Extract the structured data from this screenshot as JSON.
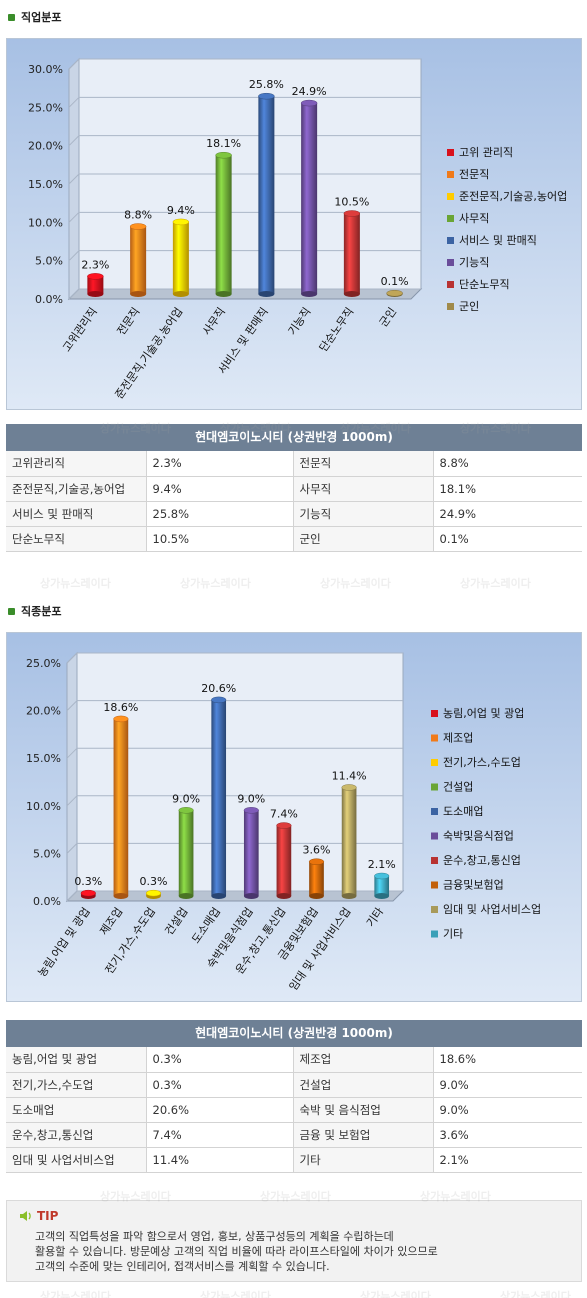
{
  "occupation_section": {
    "title": "직업분포",
    "table_title": "현대엠코이노시티 (상권반경 1000m)",
    "rows": [
      [
        "고위관리직",
        "2.3%",
        "전문직",
        "8.8%"
      ],
      [
        "준전문직,기술공,농어업",
        "9.4%",
        "사무직",
        "18.1%"
      ],
      [
        "서비스 및 판매직",
        "25.8%",
        "기능직",
        "24.9%"
      ],
      [
        "단순노무직",
        "10.5%",
        "군인",
        "0.1%"
      ]
    ]
  },
  "industry_section": {
    "title": "직종분포",
    "table_title": "현대엠코이노시티 (상권반경 1000m)",
    "rows": [
      [
        "농림,어업 및 광업",
        "0.3%",
        "제조업",
        "18.6%"
      ],
      [
        "전기,가스,수도업",
        "0.3%",
        "건설업",
        "9.0%"
      ],
      [
        "도소매업",
        "20.6%",
        "숙박 및 음식점업",
        "9.0%"
      ],
      [
        "운수,창고,통신업",
        "7.4%",
        "금융 및 보험업",
        "3.6%"
      ],
      [
        "임대 및 사업서비스업",
        "11.4%",
        "기타",
        "2.1%"
      ]
    ]
  },
  "tip": {
    "title": "TIP",
    "lines": [
      "고객의 직업특성을 파악 함으로서 영업, 홍보, 상품구성등의 계획을 수립하는데",
      "활용할 수 있습니다. 방문예상 고객의 직업 비율에 따라 라이프스타일에 차이가 있으므로",
      "고객의 수준에 맞는 인테리어, 접객서비스를 계획할 수 있습니다."
    ]
  },
  "watermark_text": "상가뉴스레이다",
  "chart_data": [
    {
      "type": "bar",
      "categories": [
        "고위관리직",
        "전문직",
        "준전문직,기술공,농어업",
        "사무직",
        "서비스 및 판매직",
        "기능직",
        "단순노무직",
        "군인"
      ],
      "values": [
        2.3,
        8.8,
        9.4,
        18.1,
        25.8,
        24.9,
        10.5,
        0.1
      ],
      "value_labels": [
        "2.3%",
        "8.8%",
        "9.4%",
        "18.1%",
        "25.8%",
        "24.9%",
        "10.5%",
        "0.1%"
      ],
      "legend": [
        "고위 관리직",
        "전문직",
        "준전문직,기술공,농어업",
        "사무직",
        "서비스 및 판매직",
        "기능직",
        "단순노무직",
        "군인"
      ],
      "colors": [
        "#d8101c",
        "#f07a1a",
        "#ffcc00",
        "#6aa535",
        "#3b63a3",
        "#6a4d9a",
        "#b83232",
        "#a08a4a"
      ],
      "yticks": [
        "0.0%",
        "5.0%",
        "10.0%",
        "15.0%",
        "20.0%",
        "25.0%",
        "30.0%"
      ],
      "ylim": [
        0,
        30
      ],
      "grid": true,
      "legend_position": "right"
    },
    {
      "type": "bar",
      "categories": [
        "농림,어업 및 광업",
        "제조업",
        "전기,가스,수도업",
        "건설업",
        "도소매업",
        "숙박및음식점업",
        "운수,창고,통신업",
        "금융및보험업",
        "임대 및 사업서비스업",
        "기타"
      ],
      "values": [
        0.3,
        18.6,
        0.3,
        9.0,
        20.6,
        9.0,
        7.4,
        3.6,
        11.4,
        2.1
      ],
      "value_labels": [
        "0.3%",
        "18.6%",
        "0.3%",
        "9.0%",
        "20.6%",
        "9.0%",
        "7.4%",
        "3.6%",
        "11.4%",
        "2.1%"
      ],
      "legend": [
        "농림,어업 및 광업",
        "제조업",
        "전기,가스,수도업",
        "건설업",
        "도소매업",
        "숙박및음식점업",
        "운수,창고,통신업",
        "금융및보험업",
        "임대 및 사업서비스업",
        "기타"
      ],
      "colors": [
        "#d8101c",
        "#f07a1a",
        "#ffcc00",
        "#6aa535",
        "#3b63a3",
        "#6a4d9a",
        "#b83232",
        "#c2600a",
        "#a89a5a",
        "#3aa0b8"
      ],
      "yticks": [
        "0.0%",
        "5.0%",
        "10.0%",
        "15.0%",
        "20.0%",
        "25.0%"
      ],
      "ylim": [
        0,
        25
      ],
      "grid": true,
      "legend_position": "right"
    }
  ]
}
